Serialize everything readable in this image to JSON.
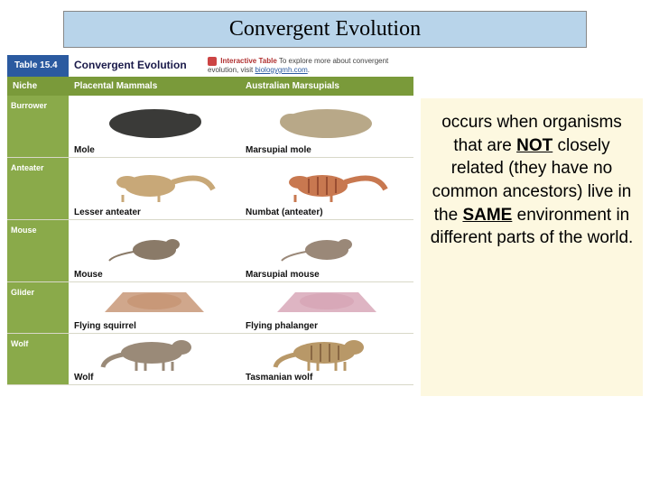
{
  "title": "Convergent Evolution",
  "table": {
    "number": "Table 15.4",
    "title": "Convergent Evolution",
    "interactive": {
      "label": "Interactive Table",
      "text": "To explore more about convergent evolution, visit",
      "link": "biologygmh.com"
    },
    "headers": {
      "niche": "Niche",
      "colA": "Placental Mammals",
      "colB": "Australian Marsupials"
    },
    "rows": [
      {
        "niche": "Burrower",
        "a": "Mole",
        "b": "Marsupial mole",
        "colors": {
          "a": "#3a3a38",
          "b": "#b8a888"
        }
      },
      {
        "niche": "Anteater",
        "a": "Lesser anteater",
        "b": "Numbat (anteater)",
        "colors": {
          "a": "#c8a878",
          "b": "#c87850"
        }
      },
      {
        "niche": "Mouse",
        "a": "Mouse",
        "b": "Marsupial mouse",
        "colors": {
          "a": "#8a7a68",
          "b": "#9a8878"
        }
      },
      {
        "niche": "Glider",
        "a": "Flying squirrel",
        "b": "Flying phalanger",
        "colors": {
          "a": "#c89878",
          "b": "#d8a8b8"
        }
      },
      {
        "niche": "Wolf",
        "a": "Wolf",
        "b": "Tasmanian wolf",
        "colors": {
          "a": "#9a8a78",
          "b": "#b89868"
        }
      }
    ]
  },
  "description": {
    "parts": [
      {
        "t": "occurs when organisms that are "
      },
      {
        "t": "NOT",
        "em": true
      },
      {
        "t": " closely related (they have no common ancestors) live in the "
      },
      {
        "t": "SAME",
        "em": true
      },
      {
        "t": " environment in different parts of the world."
      }
    ]
  },
  "styling": {
    "title_bg": "#b8d4ea",
    "niche_bg": "#8aaa4a",
    "header_bg": "#7a9a3a",
    "tablenum_bg": "#2b5aa0",
    "textbox_bg": "#fdf8e0"
  }
}
